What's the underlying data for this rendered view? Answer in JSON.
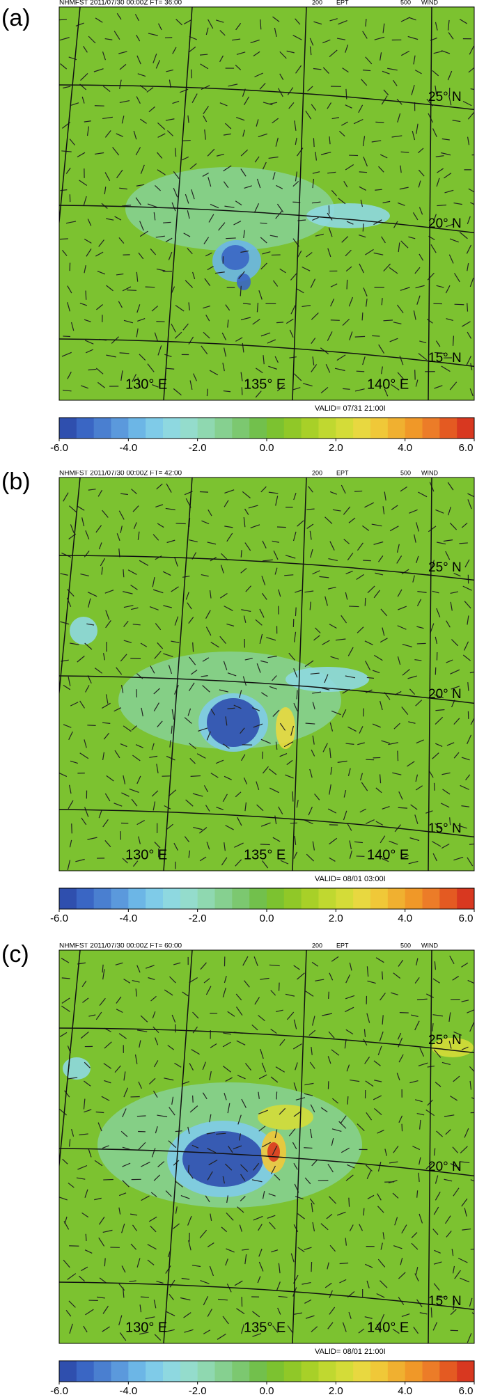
{
  "panels": [
    {
      "label": "(a)",
      "header": "NHMFST 2011/07/30 00:00Z FT= 36:00",
      "level1": "200",
      "field1": "EPT",
      "level2": "500",
      "field2": "WIND",
      "lat_labels": [
        "25° N",
        "20° N",
        "15° N"
      ],
      "lon_labels": [
        "130° E",
        "135° E",
        "140° E"
      ],
      "valid": "VALID= 07/31 21:00I"
    },
    {
      "label": "(b)",
      "header": "NHMFST 2011/07/30 00:00Z FT= 42:00",
      "level1": "200",
      "field1": "EPT",
      "level2": "500",
      "field2": "WIND",
      "lat_labels": [
        "25° N",
        "20° N",
        "15° N"
      ],
      "lon_labels": [
        "130° E",
        "135° E",
        "140° E"
      ],
      "valid": "VALID= 08/01 03:00I"
    },
    {
      "label": "(c)",
      "header": "NHMFST 2011/07/30 00:00Z FT= 60:00",
      "level1": "200",
      "field1": "EPT",
      "level2": "500",
      "field2": "WIND",
      "lat_labels": [
        "25° N",
        "20° N",
        "15° N"
      ],
      "lon_labels": [
        "130° E",
        "135° E",
        "140° E"
      ],
      "valid": "VALID= 08/01 21:00I"
    }
  ],
  "colorbar": {
    "range": [
      -6,
      6
    ],
    "colors": [
      "#2f4fae",
      "#3a66c4",
      "#4a7fd0",
      "#5b99dc",
      "#6cb6e6",
      "#7fcbe8",
      "#8ed8e0",
      "#94dccc",
      "#8fd8b0",
      "#86d090",
      "#7cc870",
      "#72c04c",
      "#7cc230",
      "#90c828",
      "#a8d028",
      "#c0d830",
      "#d4dc38",
      "#e8d840",
      "#f0c838",
      "#f0b030",
      "#f09828",
      "#ec7c28",
      "#e45a22",
      "#d83820"
    ],
    "ticks": [
      {
        "value": -6,
        "label": "-6.0"
      },
      {
        "value": -4,
        "label": "-4.0"
      },
      {
        "value": -2,
        "label": "-2.0"
      },
      {
        "value": 0,
        "label": "0.0"
      },
      {
        "value": 2,
        "label": "2.0"
      },
      {
        "value": 4,
        "label": "4.0"
      },
      {
        "value": 6,
        "label": "6.0"
      }
    ]
  }
}
